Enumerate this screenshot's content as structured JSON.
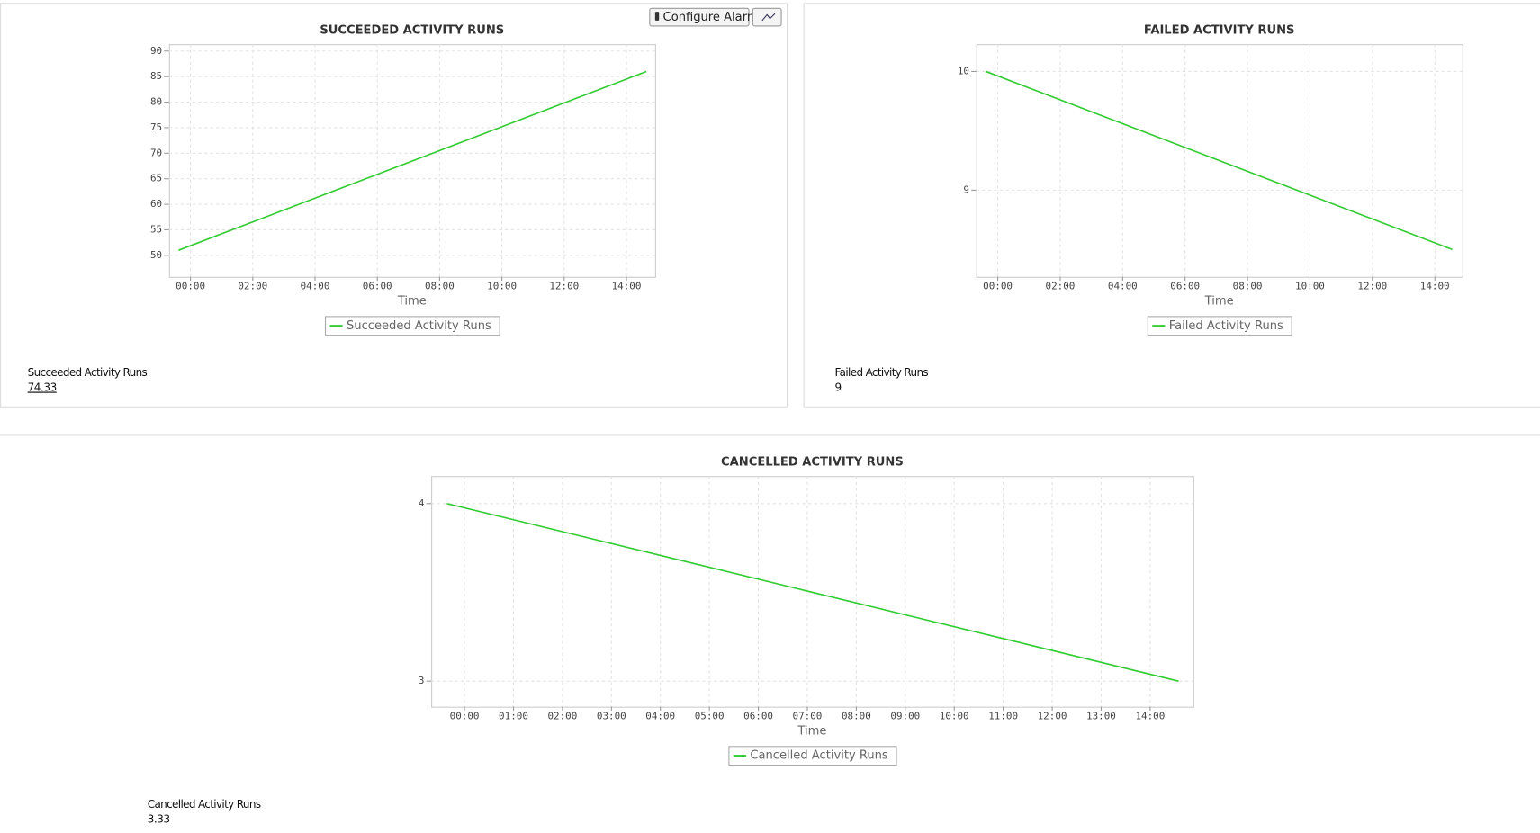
{
  "toolbar": {
    "configure_alarms": "Configure Alarms"
  },
  "summaries": [
    {
      "label": "Succeeded Activity Runs",
      "value": "74.33"
    },
    {
      "label": "Failed Activity Runs",
      "value": "9"
    },
    {
      "label": "Cancelled Activity Runs",
      "value": "3.33"
    }
  ],
  "chart_data": [
    {
      "type": "line",
      "title": "SUCCEEDED ACTIVITY RUNS",
      "x_label": "Time",
      "x": [
        -0.38,
        14.64
      ],
      "series": [
        {
          "name": "Succeeded Activity Runs",
          "color": "#33cc33",
          "values": [
            51,
            86
          ]
        }
      ],
      "xlim": [
        -0.69,
        14.92
      ],
      "xticks": [
        {
          "value": 0,
          "label": "00:00"
        },
        {
          "value": 2,
          "label": "02:00"
        },
        {
          "value": 4,
          "label": "04:00"
        },
        {
          "value": 6,
          "label": "06:00"
        },
        {
          "value": 8,
          "label": "08:00"
        },
        {
          "value": 10,
          "label": "10:00"
        },
        {
          "value": 12,
          "label": "12:00"
        },
        {
          "value": 14,
          "label": "14:00"
        }
      ],
      "ylim": [
        45.8,
        91.35
      ],
      "yticks": [
        50,
        55,
        60,
        65,
        70,
        75,
        80,
        85,
        90
      ],
      "grid": true
    },
    {
      "type": "line",
      "title": "FAILED ACTIVITY RUNS",
      "x_label": "Time",
      "x": [
        -0.38,
        14.56
      ],
      "series": [
        {
          "name": "Failed Activity Runs",
          "color": "#33cc33",
          "values": [
            10,
            8.5
          ]
        }
      ],
      "xlim": [
        -0.69,
        14.88
      ],
      "xticks": [
        {
          "value": 0,
          "label": "00:00"
        },
        {
          "value": 2,
          "label": "02:00"
        },
        {
          "value": 4,
          "label": "04:00"
        },
        {
          "value": 6,
          "label": "06:00"
        },
        {
          "value": 8,
          "label": "08:00"
        },
        {
          "value": 10,
          "label": "10:00"
        },
        {
          "value": 12,
          "label": "12:00"
        },
        {
          "value": 14,
          "label": "14:00"
        }
      ],
      "ylim": [
        8.27,
        10.23
      ],
      "yticks": [
        9,
        10
      ],
      "grid": true
    },
    {
      "type": "line",
      "title": "CANCELLED ACTIVITY RUNS",
      "x_label": "Time",
      "x": [
        -0.36,
        14.58
      ],
      "series": [
        {
          "name": "Cancelled Activity Runs",
          "color": "#33cc33",
          "values": [
            4,
            3
          ]
        }
      ],
      "xlim": [
        -0.68,
        14.88
      ],
      "xticks": [
        {
          "value": 0,
          "label": "00:00"
        },
        {
          "value": 1,
          "label": "01:00"
        },
        {
          "value": 2,
          "label": "02:00"
        },
        {
          "value": 3,
          "label": "03:00"
        },
        {
          "value": 4,
          "label": "04:00"
        },
        {
          "value": 5,
          "label": "05:00"
        },
        {
          "value": 6,
          "label": "06:00"
        },
        {
          "value": 7,
          "label": "07:00"
        },
        {
          "value": 8,
          "label": "08:00"
        },
        {
          "value": 9,
          "label": "09:00"
        },
        {
          "value": 10,
          "label": "10:00"
        },
        {
          "value": 11,
          "label": "11:00"
        },
        {
          "value": 12,
          "label": "12:00"
        },
        {
          "value": 13,
          "label": "13:00"
        },
        {
          "value": 14,
          "label": "14:00"
        }
      ],
      "ylim": [
        2.856,
        4.155
      ],
      "yticks": [
        3,
        4
      ],
      "grid": true
    }
  ]
}
